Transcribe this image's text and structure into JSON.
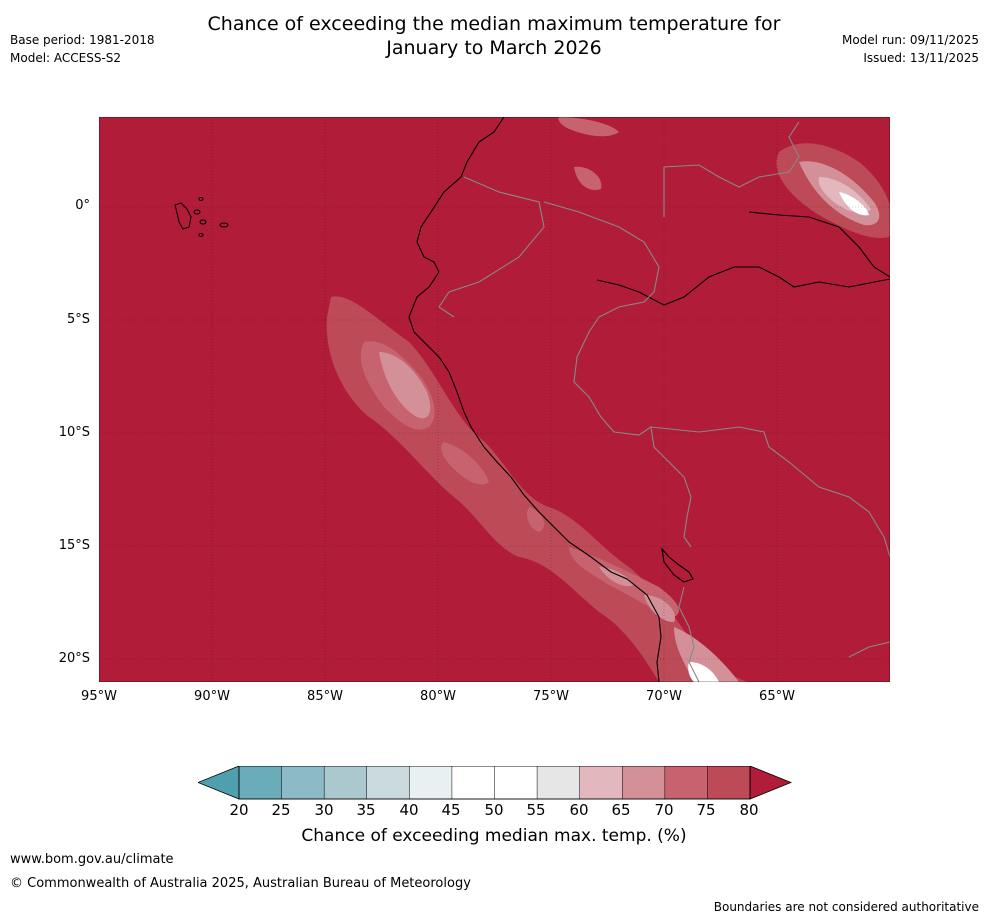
{
  "title": {
    "line1": "Chance of exceeding the median maximum temperature for",
    "line2": "January to March 2026"
  },
  "meta": {
    "base_period": "Base period: 1981-2018",
    "model": "Model: ACCESS-S2",
    "model_run": "Model run: 09/11/2025",
    "issued": "Issued: 13/11/2025"
  },
  "map": {
    "background_color": "#b11c38",
    "y_ticks": [
      "0°",
      "5°S",
      "10°S",
      "15°S",
      "20°S"
    ],
    "x_ticks": [
      "95°W",
      "90°W",
      "85°W",
      "80°W",
      "75°W",
      "70°W",
      "65°W"
    ]
  },
  "colorbar": {
    "ticks": [
      "20",
      "25",
      "30",
      "35",
      "40",
      "45",
      "50",
      "55",
      "60",
      "65",
      "70",
      "75",
      "80"
    ],
    "colors": [
      "#6aacb9",
      "#8cbac6",
      "#aac8ce",
      "#c9d9dd",
      "#e9f0f2",
      "#ffffff",
      "#ffffff",
      "#e6e6e6",
      "#e2b8be",
      "#d49099",
      "#c6636f",
      "#bd4a57"
    ],
    "low_extend_color": "#4ea0ae",
    "high_extend_color": "#b11c38",
    "label": "Chance of exceeding median max. temp. (%)"
  },
  "footer": {
    "url": "www.bom.gov.au/climate",
    "copyright": "© Commonwealth of Australia 2025, Australian Bureau of Meteorology",
    "disclaimer": "Boundaries are not considered authoritative"
  }
}
